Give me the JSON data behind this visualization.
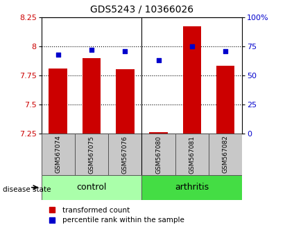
{
  "title": "GDS5243 / 10366026",
  "samples": [
    "GSM567074",
    "GSM567075",
    "GSM567076",
    "GSM567080",
    "GSM567081",
    "GSM567082"
  ],
  "bar_values": [
    7.81,
    7.9,
    7.8,
    7.26,
    8.17,
    7.83
  ],
  "dot_values": [
    68,
    72,
    71,
    63,
    75,
    71
  ],
  "bar_color": "#cc0000",
  "dot_color": "#0000cc",
  "ylim_left": [
    7.25,
    8.25
  ],
  "ylim_right": [
    0,
    100
  ],
  "yticks_left": [
    7.25,
    7.5,
    7.75,
    8.0,
    8.25
  ],
  "yticks_right": [
    0,
    25,
    50,
    75,
    100
  ],
  "ytick_labels_left": [
    "7.25",
    "7.5",
    "7.75",
    "8",
    "8.25"
  ],
  "ytick_labels_right": [
    "0",
    "25",
    "50",
    "75",
    "100%"
  ],
  "hlines": [
    7.5,
    7.75,
    8.0
  ],
  "groups": [
    {
      "label": "control",
      "indices": [
        0,
        1,
        2
      ],
      "color": "#aaffaa"
    },
    {
      "label": "arthritis",
      "indices": [
        3,
        4,
        5
      ],
      "color": "#44dd44"
    }
  ],
  "group_label": "disease state",
  "legend_items": [
    {
      "color": "#cc0000",
      "marker": "s",
      "label": "transformed count"
    },
    {
      "color": "#0000cc",
      "marker": "s",
      "label": "percentile rank within the sample"
    }
  ],
  "bar_width": 0.55,
  "tick_label_color_left": "#cc0000",
  "tick_label_color_right": "#0000cc",
  "separator_xi": 2.5,
  "xtick_bg_color": "#c8c8c8",
  "fig_bg_color": "#ffffff"
}
